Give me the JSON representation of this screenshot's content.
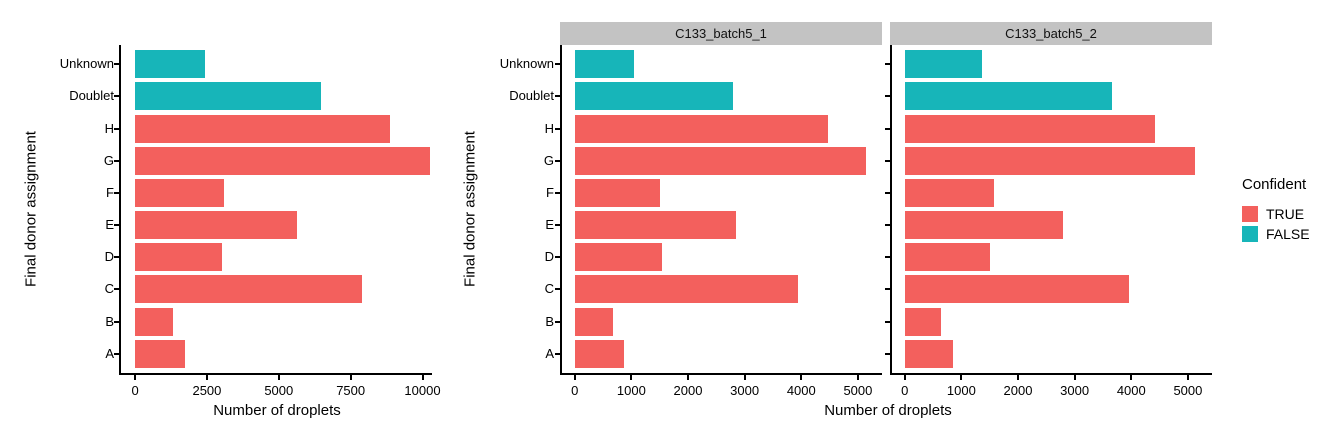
{
  "chart_data": {
    "type": "bar",
    "orientation": "horizontal",
    "title": "",
    "xlabel": "Number of droplets",
    "ylabel": "Final donor assignment",
    "grid": false,
    "legend_position": "right",
    "categories": [
      "Unknown",
      "Doublet",
      "H",
      "G",
      "F",
      "E",
      "D",
      "C",
      "B",
      "A"
    ],
    "category_confident": [
      false,
      false,
      true,
      true,
      true,
      true,
      true,
      true,
      true,
      true
    ],
    "colors": {
      "true_color": "#F3605D",
      "false_color": "#17B5B9",
      "strip_bg": "#C3C3C3",
      "axis": "#000000"
    },
    "panels": [
      {
        "title": "",
        "values": [
          2420,
          6460,
          8880,
          10270,
          3080,
          5650,
          3040,
          7910,
          1320,
          1720
        ],
        "ticks": [
          0,
          2500,
          5000,
          7500,
          10000
        ],
        "tick_labels": [
          "0",
          "2500",
          "5000",
          "7500",
          "10000"
        ],
        "domain": [
          -490,
          10330
        ]
      },
      {
        "title": "C133_batch5_1",
        "values": [
          1050,
          2800,
          4470,
          5150,
          1500,
          2850,
          1540,
          3950,
          680,
          870
        ],
        "ticks": [
          0,
          1000,
          2000,
          3000,
          4000,
          5000
        ],
        "tick_labels": [
          "0",
          "1000",
          "2000",
          "3000",
          "4000",
          "5000"
        ],
        "domain": [
          -225,
          5425
        ]
      },
      {
        "title": "C133_batch5_2",
        "values": [
          1370,
          3660,
          4410,
          5120,
          1580,
          2800,
          1500,
          3960,
          640,
          850
        ],
        "ticks": [
          0,
          1000,
          2000,
          3000,
          4000,
          5000
        ],
        "tick_labels": [
          "0",
          "1000",
          "2000",
          "3000",
          "4000",
          "5000"
        ],
        "domain": [
          -225,
          5425
        ]
      }
    ],
    "legend": {
      "title": "Confident",
      "entries": [
        {
          "label": "TRUE",
          "color": "#F3605D"
        },
        {
          "label": "FALSE",
          "color": "#17B5B9"
        }
      ]
    }
  }
}
